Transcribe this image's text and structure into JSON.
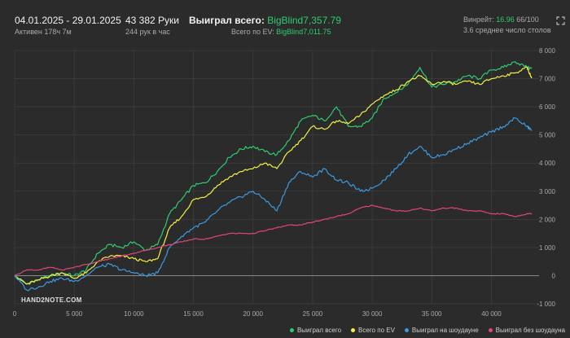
{
  "header": {
    "date_range": "04.01.2025 - 29.01.2025",
    "active": "Активен 178ч 7м",
    "hands_label": "43 382 Руки",
    "hands_rate": "244 рук в час",
    "won_label": "Выиграл всего:",
    "won_value": "BigBlind7,357.79",
    "ev_label": "Всего по EV:",
    "ev_value": "BigBlind7,011.75",
    "winrate_label": "Винрейт:",
    "winrate_value": "16.96",
    "winrate_suffix": "66/100",
    "tables": "3.6 среднее число столов"
  },
  "logo_text": "HAND2NOTE.COM",
  "icons": {
    "expand": "expand-icon"
  },
  "colors": {
    "total": "#2ecc71",
    "ev": "#f4f142",
    "showdown": "#3b9ae1",
    "nonshowdown": "#e0457b",
    "grid": "#3a3a3a",
    "zero": "#8a8a8a"
  },
  "chart_data": {
    "type": "line",
    "xlim": [
      0,
      44000
    ],
    "ylim": [
      -1000,
      8000
    ],
    "x_ticks": [
      "0",
      "5 000",
      "10 000",
      "15 000",
      "20 000",
      "25 000",
      "30 000",
      "35 000",
      "40 000"
    ],
    "x_tick_values": [
      0,
      5000,
      10000,
      15000,
      20000,
      25000,
      30000,
      35000,
      40000
    ],
    "y_ticks": [
      "8 000",
      "7 000",
      "6 000",
      "5 000",
      "4 000",
      "3 000",
      "2 000",
      "1 000",
      "0",
      "-1 000"
    ],
    "y_tick_values": [
      8000,
      7000,
      6000,
      5000,
      4000,
      3000,
      2000,
      1000,
      0,
      -1000
    ],
    "grid": true,
    "legend_position": "bottom-right",
    "series": [
      {
        "name": "Выиграл всего",
        "color_key": "total",
        "x": [
          0,
          1000,
          2000,
          3000,
          4000,
          5000,
          6000,
          7000,
          8000,
          9000,
          10000,
          11000,
          12000,
          13000,
          14000,
          15000,
          16000,
          17000,
          18000,
          19000,
          20000,
          21000,
          22000,
          23000,
          24000,
          25000,
          26000,
          27000,
          28000,
          29000,
          30000,
          31000,
          32000,
          33000,
          34000,
          35000,
          36000,
          37000,
          38000,
          39000,
          40000,
          41000,
          42000,
          43000,
          43382
        ],
        "values": [
          0,
          -300,
          -150,
          0,
          100,
          0,
          200,
          800,
          1100,
          1000,
          1200,
          900,
          1100,
          2200,
          2700,
          3200,
          3300,
          3700,
          4200,
          4500,
          4600,
          4400,
          4300,
          4800,
          5500,
          5700,
          5500,
          6000,
          5300,
          5300,
          5600,
          6300,
          6500,
          6800,
          7400,
          6700,
          6800,
          6900,
          7100,
          7000,
          7300,
          7400,
          7600,
          7400,
          7358
        ]
      },
      {
        "name": "Всего по EV",
        "color_key": "ev",
        "x": [
          0,
          1000,
          2000,
          3000,
          4000,
          5000,
          6000,
          7000,
          8000,
          9000,
          10000,
          11000,
          12000,
          13000,
          14000,
          15000,
          16000,
          17000,
          18000,
          19000,
          20000,
          21000,
          22000,
          23000,
          24000,
          25000,
          26000,
          27000,
          28000,
          29000,
          30000,
          31000,
          32000,
          33000,
          34000,
          35000,
          36000,
          37000,
          38000,
          39000,
          40000,
          41000,
          42000,
          43000,
          43382
        ],
        "values": [
          0,
          -300,
          -150,
          0,
          100,
          -100,
          100,
          500,
          700,
          700,
          600,
          500,
          600,
          1700,
          2100,
          2700,
          2800,
          3200,
          3500,
          3700,
          3800,
          4000,
          3800,
          4400,
          4800,
          5300,
          5200,
          5500,
          5400,
          5700,
          6100,
          6400,
          6600,
          6900,
          7100,
          6800,
          6900,
          6800,
          6900,
          6800,
          7000,
          7100,
          7200,
          7400,
          7012
        ]
      },
      {
        "name": "Выиграл на шоудауне",
        "color_key": "showdown",
        "x": [
          0,
          1000,
          2000,
          3000,
          4000,
          5000,
          6000,
          7000,
          8000,
          9000,
          10000,
          11000,
          12000,
          13000,
          14000,
          15000,
          16000,
          17000,
          18000,
          19000,
          20000,
          21000,
          22000,
          23000,
          24000,
          25000,
          26000,
          27000,
          28000,
          29000,
          30000,
          31000,
          32000,
          33000,
          34000,
          35000,
          36000,
          37000,
          38000,
          39000,
          40000,
          41000,
          42000,
          43000,
          43382
        ],
        "values": [
          0,
          -500,
          -400,
          -200,
          -100,
          -200,
          0,
          300,
          400,
          200,
          100,
          0,
          100,
          1000,
          1400,
          1700,
          1900,
          2300,
          2600,
          2800,
          3000,
          2700,
          2300,
          3300,
          3700,
          3500,
          3800,
          3400,
          3300,
          3000,
          3100,
          3400,
          3800,
          4300,
          4600,
          4200,
          4300,
          4500,
          4700,
          4900,
          5100,
          5300,
          5600,
          5300,
          5150
        ]
      },
      {
        "name": "Выиграл без шоудауна",
        "color_key": "nonshowdown",
        "x": [
          0,
          1000,
          2000,
          3000,
          4000,
          5000,
          6000,
          7000,
          8000,
          9000,
          10000,
          11000,
          12000,
          13000,
          14000,
          15000,
          16000,
          17000,
          18000,
          19000,
          20000,
          21000,
          22000,
          23000,
          24000,
          25000,
          26000,
          27000,
          28000,
          29000,
          30000,
          31000,
          32000,
          33000,
          34000,
          35000,
          36000,
          37000,
          38000,
          39000,
          40000,
          41000,
          42000,
          43000,
          43382
        ],
        "values": [
          0,
          200,
          200,
          300,
          200,
          300,
          400,
          500,
          600,
          700,
          800,
          900,
          1000,
          1100,
          1200,
          1300,
          1300,
          1400,
          1500,
          1500,
          1500,
          1600,
          1700,
          1800,
          1800,
          1900,
          2000,
          2100,
          2200,
          2400,
          2500,
          2400,
          2300,
          2300,
          2400,
          2300,
          2400,
          2400,
          2300,
          2300,
          2200,
          2200,
          2100,
          2200,
          2210
        ]
      }
    ]
  }
}
